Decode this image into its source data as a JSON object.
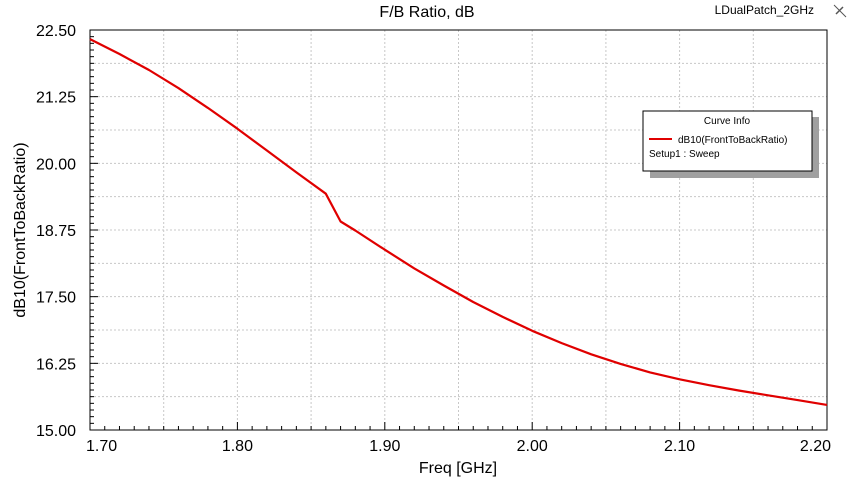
{
  "window": {
    "project_name": "LDualPatch_2GHz",
    "corner_icon": "pin-icon"
  },
  "chart_data": {
    "type": "line",
    "title": "F/B Ratio, dB",
    "xlabel": "Freq [GHz]",
    "ylabel": "dB10(FrontToBackRatio)",
    "xlim": [
      1.7,
      2.2
    ],
    "ylim": [
      15.0,
      22.5
    ],
    "xticks": [
      "1.70",
      "1.80",
      "1.90",
      "2.00",
      "2.10",
      "2.20"
    ],
    "yticks": [
      "15.00",
      "16.25",
      "17.50",
      "18.75",
      "20.00",
      "21.25",
      "22.50"
    ],
    "grid": true,
    "legend": {
      "title": "Curve Info",
      "placement": "top-right",
      "entries": [
        {
          "name": "dB10(FrontToBackRatio)",
          "sub": "Setup1 : Sweep",
          "color": "#e00000"
        }
      ]
    },
    "series": [
      {
        "name": "dB10(FrontToBackRatio)",
        "color": "#e00000",
        "x": [
          1.7,
          1.72,
          1.74,
          1.76,
          1.78,
          1.8,
          1.82,
          1.84,
          1.86,
          1.87,
          1.88,
          1.9,
          1.92,
          1.94,
          1.96,
          1.98,
          2.0,
          2.02,
          2.04,
          2.06,
          2.08,
          2.1,
          2.12,
          2.14,
          2.16,
          2.18,
          2.2
        ],
        "y": [
          22.33,
          22.05,
          21.75,
          21.41,
          21.04,
          20.65,
          20.24,
          19.83,
          19.43,
          18.91,
          18.74,
          18.38,
          18.03,
          17.71,
          17.4,
          17.12,
          16.86,
          16.63,
          16.42,
          16.24,
          16.08,
          15.95,
          15.84,
          15.74,
          15.65,
          15.56,
          15.47
        ]
      }
    ]
  }
}
